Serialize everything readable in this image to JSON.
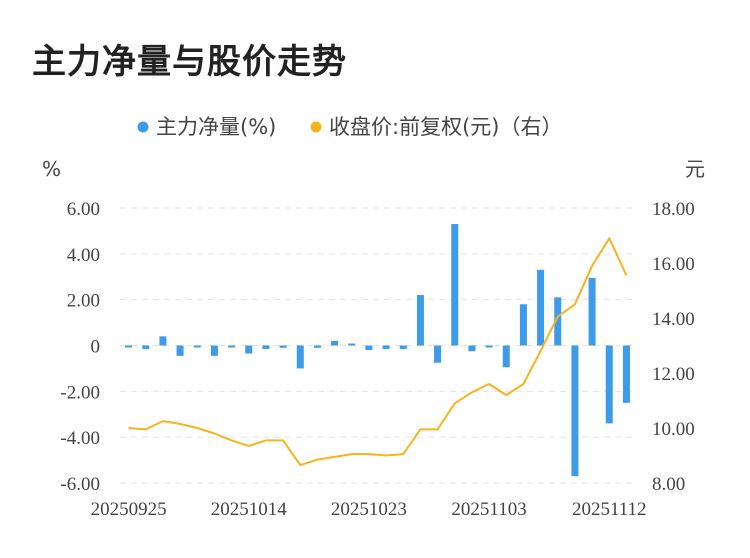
{
  "title": "主力净量与股价走势",
  "chart_data": {
    "type": "bar+line",
    "legend": [
      {
        "name": "主力净量(%)",
        "color": "#3d9be9",
        "marker": "dot"
      },
      {
        "name": "收盘价:前复权(元)（右）",
        "color": "#f5b41e",
        "marker": "dot"
      }
    ],
    "left_axis": {
      "unit": "%",
      "min": -6,
      "max": 6,
      "ticks": [
        "6.00",
        "4.00",
        "2.00",
        "0",
        "-2.00",
        "-4.00",
        "-6.00"
      ],
      "tick_values": [
        6,
        4,
        2,
        0,
        -2,
        -4,
        -6
      ]
    },
    "right_axis": {
      "unit": "元",
      "min": 8,
      "max": 18,
      "ticks": [
        "18.00",
        "16.00",
        "14.00",
        "12.00",
        "10.00",
        "8.00"
      ],
      "tick_values": [
        18,
        16,
        14,
        12,
        10,
        8
      ]
    },
    "x_tick_labels": [
      {
        "index": 0,
        "label": "20250925"
      },
      {
        "index": 7,
        "label": "20251014"
      },
      {
        "index": 14,
        "label": "20251023"
      },
      {
        "index": 21,
        "label": "20251103"
      },
      {
        "index": 28,
        "label": "20251112"
      }
    ],
    "series": [
      {
        "name": "主力净量(%)",
        "type": "bar",
        "axis": "left",
        "values": [
          -0.05,
          -0.15,
          0.4,
          -0.45,
          -0.05,
          -0.45,
          -0.05,
          -0.35,
          -0.15,
          -0.1,
          -1.0,
          -0.1,
          0.2,
          0.05,
          -0.2,
          -0.15,
          -0.15,
          2.2,
          -0.75,
          5.3,
          -0.25,
          -0.05,
          -0.95,
          1.8,
          3.3,
          2.1,
          -5.7,
          2.95,
          -3.4,
          -2.5
        ]
      },
      {
        "name": "收盘价:前复权(元)（右）",
        "type": "line",
        "axis": "right",
        "values": [
          10.0,
          9.95,
          10.25,
          10.15,
          10.0,
          9.8,
          9.55,
          9.35,
          9.55,
          9.55,
          8.65,
          8.85,
          8.95,
          9.05,
          9.05,
          9.0,
          9.05,
          9.95,
          9.95,
          10.9,
          11.3,
          11.6,
          11.2,
          11.6,
          12.8,
          14.05,
          14.5,
          15.9,
          16.9,
          15.55
        ]
      }
    ],
    "grid": "horizontal-dashed"
  }
}
